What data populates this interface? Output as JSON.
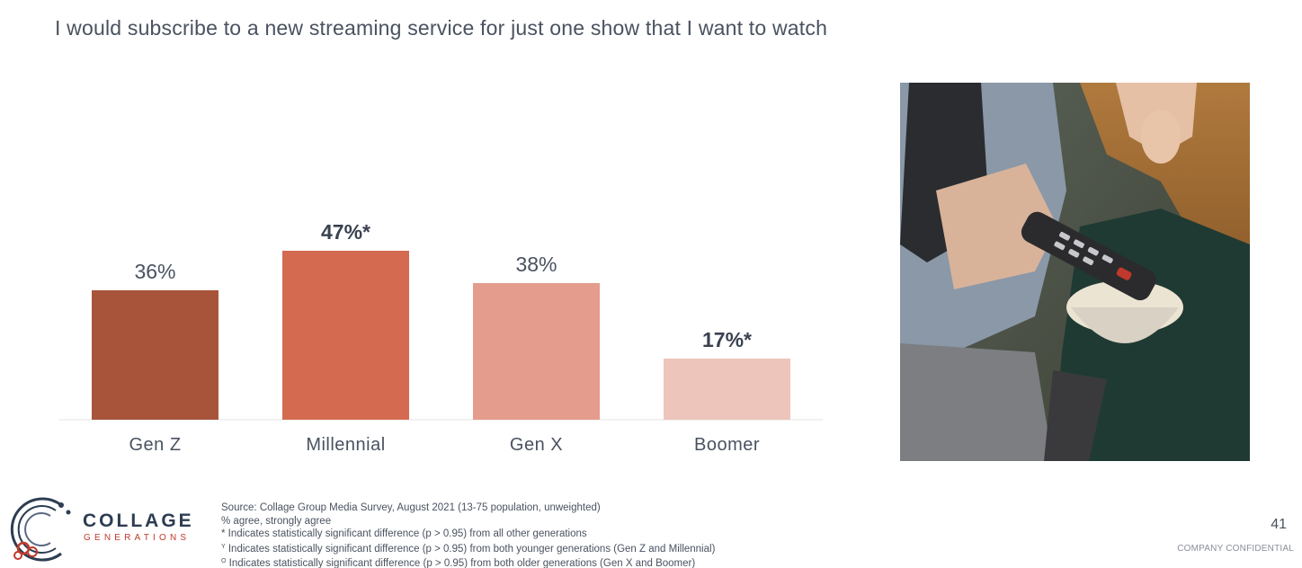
{
  "slide": {
    "title": "I would subscribe to a new streaming service for just one show that I want to watch",
    "page_number": "41",
    "confidential": "COMPANY CONFIDENTIAL"
  },
  "chart_data": {
    "type": "bar",
    "title": "I would subscribe to a new streaming service for just one show that I want to watch",
    "categories": [
      "Gen Z",
      "Millennial",
      "Gen X",
      "Boomer"
    ],
    "values": [
      36,
      47,
      38,
      17
    ],
    "value_labels": [
      "36%",
      "47%*",
      "38%",
      "17%*"
    ],
    "bold_labels": [
      false,
      true,
      false,
      true
    ],
    "colors": [
      "#a8543b",
      "#d46b51",
      "#e49c8c",
      "#edc5bb"
    ],
    "unit": "%",
    "ylim": [
      0,
      50
    ],
    "xlabel": "",
    "ylabel": "",
    "grid": false,
    "legend": "none"
  },
  "photo": {
    "description": "couple-watching-tv-icon"
  },
  "logo": {
    "word": "COLLAGE",
    "sub": "GENERATIONS"
  },
  "footnotes": {
    "source": "Source: Collage Group Media Survey, August 2021 (13-75 population, unweighted)",
    "measure": "% agree, strongly agree",
    "star_mark": "*",
    "star": " Indicates statistically significant difference (p > 0.95) from all other generations",
    "y_mark": "Y",
    "y": " Indicates statistically significant difference (p > 0.95) from both younger generations (Gen Z and Millennial)",
    "o_mark": "O",
    "o": " Indicates statistically significant difference (p > 0.95) from both older generations (Gen X and Boomer)"
  }
}
